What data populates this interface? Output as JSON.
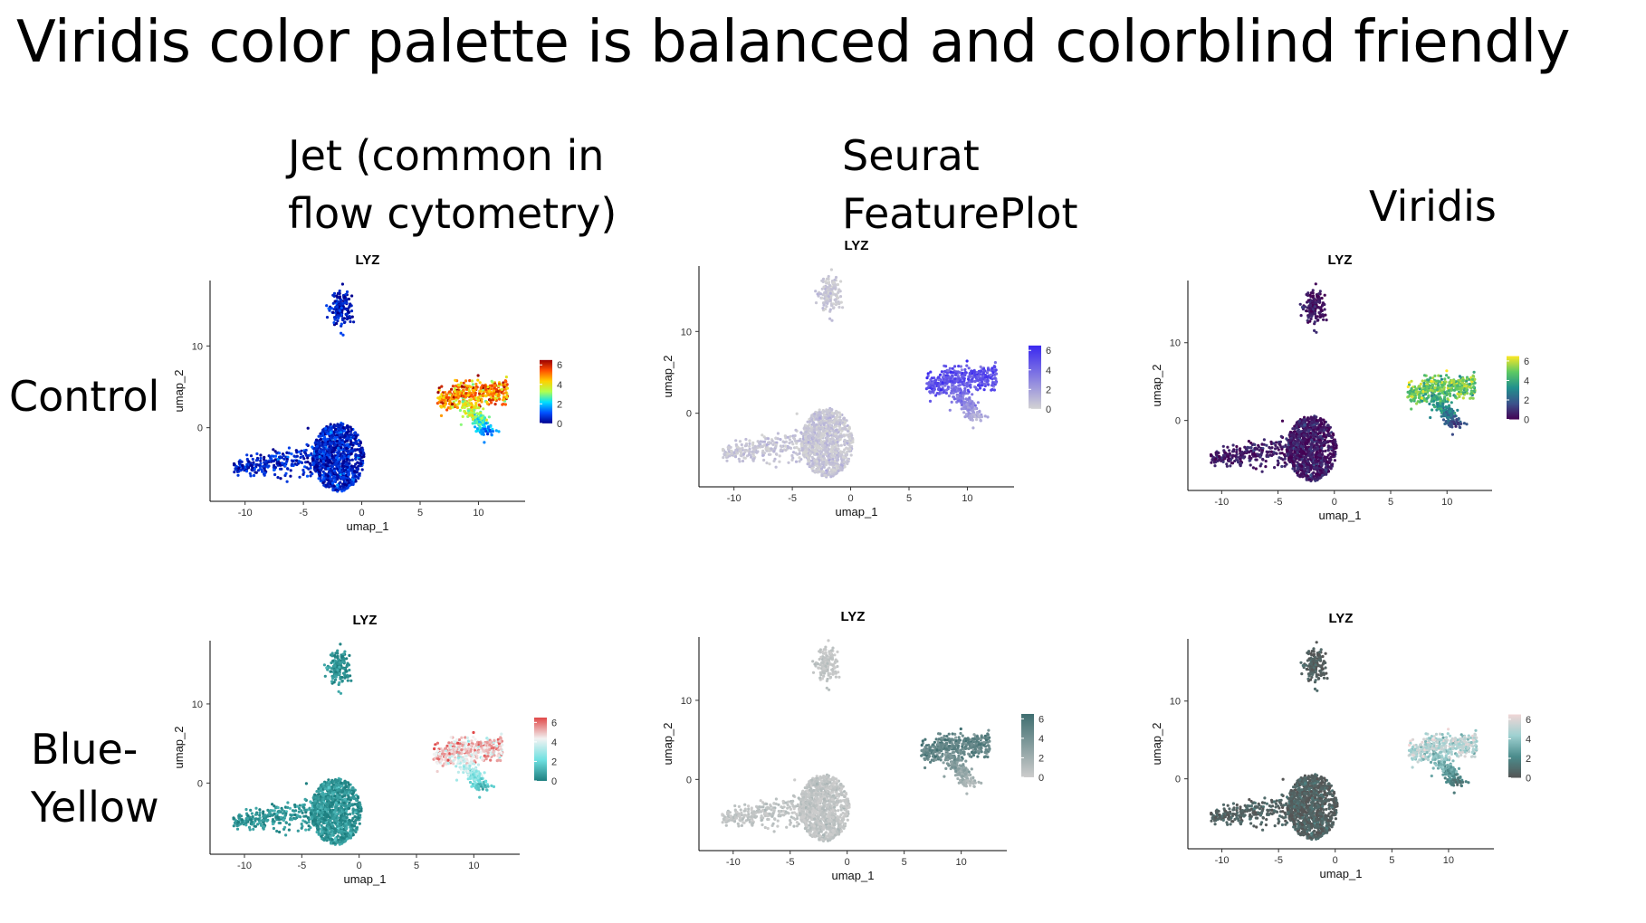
{
  "slide": {
    "title": "Viridis color palette is balanced and colorblind friendly"
  },
  "columns": [
    {
      "line1": "Jet (common in",
      "line2": "flow cytometry)"
    },
    {
      "line1": "Seurat",
      "line2": "FeaturePlot"
    },
    {
      "line1": "Viridis",
      "line2": ""
    }
  ],
  "rows": [
    {
      "line1": "Control",
      "line2": ""
    },
    {
      "line1": "Blue-",
      "line2": "Yellow"
    }
  ],
  "chart_data": [
    {
      "type": "scatter",
      "panel": "Jet / Control",
      "title": "LYZ",
      "xlabel": "umap_1",
      "ylabel": "umap_2",
      "xlim": [
        -13,
        14
      ],
      "ylim": [
        -9,
        18
      ],
      "xticks": [
        -10,
        -5,
        0,
        5,
        10
      ],
      "yticks": [
        0,
        10
      ],
      "legend": {
        "title": "",
        "ticks": [
          0,
          2,
          4,
          6
        ],
        "range": [
          0,
          6.5
        ],
        "colors": [
          "#00008f",
          "#0050ff",
          "#00dfff",
          "#b0ff50",
          "#ffd000",
          "#ff5000",
          "#9a0000"
        ]
      },
      "clusters": [
        {
          "name": "top",
          "center": [
            -1.8,
            14.6
          ],
          "expression": "low"
        },
        {
          "name": "left",
          "center": [
            -3.5,
            -3.8
          ],
          "expression": "low"
        },
        {
          "name": "right",
          "center": [
            9.5,
            3.2
          ],
          "expression": "high"
        }
      ]
    },
    {
      "type": "scatter",
      "panel": "Seurat / Control",
      "title": "LYZ",
      "xlabel": "umap_1",
      "ylabel": "umap_2",
      "xlim": [
        -13,
        14
      ],
      "ylim": [
        -9,
        18
      ],
      "xticks": [
        -10,
        -5,
        0,
        5,
        10
      ],
      "yticks": [
        0,
        10
      ],
      "legend": {
        "title": "",
        "ticks": [
          0,
          2,
          4,
          6
        ],
        "range": [
          0,
          6.5
        ],
        "colors": [
          "#d3d3d3",
          "#3a28f0"
        ]
      },
      "clusters": [
        {
          "name": "top",
          "center": [
            -1.8,
            14.6
          ],
          "expression": "low"
        },
        {
          "name": "left",
          "center": [
            -3.5,
            -3.8
          ],
          "expression": "low"
        },
        {
          "name": "right",
          "center": [
            9.5,
            3.2
          ],
          "expression": "high"
        }
      ]
    },
    {
      "type": "scatter",
      "panel": "Viridis / Control",
      "title": "LYZ",
      "xlabel": "umap_1",
      "ylabel": "umap_2",
      "xlim": [
        -13,
        14
      ],
      "ylim": [
        -9,
        18
      ],
      "xticks": [
        -10,
        -5,
        0,
        5,
        10
      ],
      "yticks": [
        0,
        10
      ],
      "legend": {
        "title": "",
        "ticks": [
          0,
          2,
          4,
          6
        ],
        "range": [
          0,
          6.5
        ],
        "colors": [
          "#440154",
          "#3b528b",
          "#21908d",
          "#5dc963",
          "#fde725"
        ]
      },
      "clusters": [
        {
          "name": "top",
          "center": [
            -1.8,
            14.6
          ],
          "expression": "low"
        },
        {
          "name": "left",
          "center": [
            -3.5,
            -3.8
          ],
          "expression": "low"
        },
        {
          "name": "right",
          "center": [
            9.5,
            3.2
          ],
          "expression": "high"
        }
      ]
    },
    {
      "type": "scatter",
      "panel": "Jet / Blue-Yellow",
      "title": "LYZ",
      "xlabel": "umap_1",
      "ylabel": "umap_2",
      "xlim": [
        -13,
        14
      ],
      "ylim": [
        -9,
        18
      ],
      "xticks": [
        -10,
        -5,
        0,
        5,
        10
      ],
      "yticks": [
        0,
        10
      ],
      "legend": {
        "title": "",
        "ticks": [
          0,
          2,
          4,
          6
        ],
        "range": [
          0,
          6.5
        ],
        "colors": [
          "#1e7f80",
          "#6fe1e1",
          "#f2f2f2",
          "#e04848"
        ]
      },
      "clusters": [
        {
          "name": "top",
          "center": [
            -1.8,
            14.6
          ],
          "expression": "low"
        },
        {
          "name": "left",
          "center": [
            -3.5,
            -3.8
          ],
          "expression": "low"
        },
        {
          "name": "right",
          "center": [
            9.5,
            3.2
          ],
          "expression": "high"
        }
      ]
    },
    {
      "type": "scatter",
      "panel": "Seurat / Blue-Yellow",
      "title": "LYZ",
      "xlabel": "umap_1",
      "ylabel": "umap_2",
      "xlim": [
        -13,
        14
      ],
      "ylim": [
        -9,
        18
      ],
      "xticks": [
        -10,
        -5,
        0,
        5,
        10
      ],
      "yticks": [
        0,
        10
      ],
      "legend": {
        "title": "",
        "ticks": [
          0,
          2,
          4,
          6
        ],
        "range": [
          0,
          6.5
        ],
        "colors": [
          "#cccccc",
          "#3f6e70"
        ]
      },
      "clusters": [
        {
          "name": "top",
          "center": [
            -1.8,
            14.6
          ],
          "expression": "low"
        },
        {
          "name": "left",
          "center": [
            -3.5,
            -3.8
          ],
          "expression": "low"
        },
        {
          "name": "right",
          "center": [
            9.5,
            3.2
          ],
          "expression": "high"
        }
      ]
    },
    {
      "type": "scatter",
      "panel": "Viridis / Blue-Yellow",
      "title": "LYZ",
      "xlabel": "umap_1",
      "ylabel": "umap_2",
      "xlim": [
        -13,
        14
      ],
      "ylim": [
        -9,
        18
      ],
      "xticks": [
        -10,
        -5,
        0,
        5,
        10
      ],
      "yticks": [
        0,
        10
      ],
      "legend": {
        "title": "",
        "ticks": [
          0,
          2,
          4,
          6
        ],
        "range": [
          0,
          6.5
        ],
        "colors": [
          "#555555",
          "#4b8c8c",
          "#9fd1d1",
          "#f0d6d6"
        ]
      },
      "clusters": [
        {
          "name": "top",
          "center": [
            -1.8,
            14.6
          ],
          "expression": "low"
        },
        {
          "name": "left",
          "center": [
            -3.5,
            -3.8
          ],
          "expression": "low"
        },
        {
          "name": "right",
          "center": [
            9.5,
            3.2
          ],
          "expression": "high"
        }
      ]
    }
  ]
}
